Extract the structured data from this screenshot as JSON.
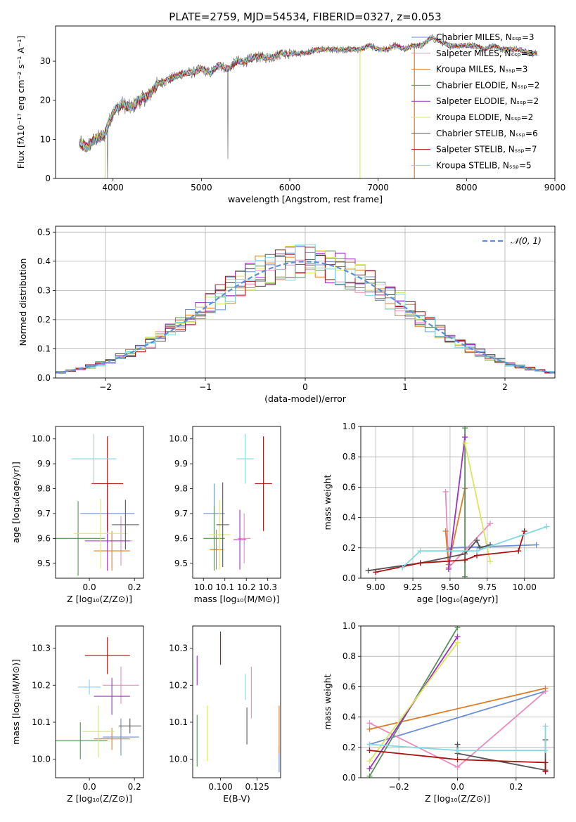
{
  "figure_title": "PLATE=2759, MJD=54534, FIBERID=0327, z=0.053",
  "colors": {
    "Chabrier MILES": "#6b8fd4",
    "Salpeter MILES": "#e98bbb",
    "Kroupa MILES": "#e07b25",
    "Chabrier ELODIE": "#5a8f5a",
    "Salpeter ELODIE": "#9b30c2",
    "Kroupa ELODIE": "#d9e85a",
    "Chabrier STELIB": "#555555",
    "Salpeter STELIB": "#aa1111",
    "Kroupa STELIB": "#80d8e0",
    "spectrum": "#777777",
    "gaussian": "#5b8fd6"
  },
  "chart_data": [
    {
      "id": "spectrum",
      "type": "line",
      "title": "",
      "xlabel": "wavelength [Angstrom, rest frame]",
      "ylabel": "Flux [fλ10⁻¹⁷ erg cm⁻² s⁻¹ A⁻¹]",
      "xlim": [
        3350,
        9000
      ],
      "ylim": [
        0,
        39
      ],
      "xticks": [
        4000,
        5000,
        6000,
        7000,
        8000,
        9000
      ],
      "yticks": [
        0,
        10,
        20,
        30
      ],
      "grid": false,
      "legend_position": "top-right",
      "legend": [
        "Chabrier MILES, Nₛₛₚ=3",
        "Salpeter MILES, Nₛₛₚ=3",
        "Kroupa MILES, Nₛₛₚ=3",
        "Chabrier ELODIE, Nₛₛₚ=2",
        "Salpeter ELODIE, Nₛₛₚ=2",
        "Kroupa ELODIE, Nₛₛₚ=2",
        "Chabrier STELIB, Nₛₛₚ=6",
        "Salpeter STELIB, Nₛₛₚ=7",
        "Kroupa STELIB, Nₛₛₚ=5"
      ],
      "spectrum_x": [
        3620,
        3700,
        3800,
        3900,
        3950,
        4000,
        4100,
        4200,
        4300,
        4400,
        4500,
        4600,
        4700,
        4800,
        4900,
        5000,
        5100,
        5200,
        5300,
        5400,
        5500,
        5600,
        5700,
        5800,
        5900,
        6000,
        6100,
        6200,
        6300,
        6400,
        6500,
        6600,
        6700,
        6800,
        6900,
        7000,
        7100,
        7200,
        7300,
        7400,
        7500,
        7600,
        7700,
        7800,
        7900,
        8000,
        8100,
        8200,
        8300,
        8400,
        8500,
        8600,
        8700,
        8800
      ],
      "spectrum_y": [
        9,
        8,
        10,
        11,
        14,
        17,
        19,
        18,
        20,
        21,
        24,
        25,
        26,
        27,
        27,
        28,
        27,
        29,
        28,
        30,
        30,
        31,
        31,
        31,
        32,
        32,
        32,
        32,
        33,
        33,
        33,
        33,
        33,
        33,
        34,
        33,
        33,
        34,
        33,
        34,
        34,
        36,
        35,
        34,
        34,
        34,
        34,
        33,
        34,
        33,
        33,
        33,
        32,
        32
      ]
    },
    {
      "id": "residual-histogram",
      "type": "bar",
      "title": "",
      "xlabel": "(data-model)/error",
      "ylabel": "Normed distribution",
      "xlim": [
        -2.5,
        2.5
      ],
      "ylim": [
        0,
        0.52
      ],
      "xticks": [
        -2,
        -1,
        0,
        1,
        2
      ],
      "yticks": [
        0.0,
        0.1,
        0.2,
        0.3,
        0.4,
        0.5
      ],
      "grid": true,
      "legend_position": "top-right",
      "legend": [
        "𝒩(0, 1)"
      ],
      "bin_width": 0.1,
      "bins_start": -2.5,
      "bins_count": 50
    },
    {
      "id": "age-vs-Z",
      "type": "scatter",
      "xlabel": "Z [log₁₀(Z/Z⊙)]",
      "ylabel": "age  [log₁₀(age/yr)]",
      "xlim": [
        -0.15,
        0.24
      ],
      "ylim": [
        9.44,
        10.05
      ],
      "xticks": [
        0.0,
        0.2
      ],
      "yticks": [
        9.5,
        9.6,
        9.7,
        9.8,
        9.9,
        10.0
      ],
      "grid": false,
      "points": [
        {
          "m": "Chabrier MILES",
          "x": 0.08,
          "y": 9.7,
          "ex": 0.12,
          "ey": 0.12
        },
        {
          "m": "Salpeter MILES",
          "x": 0.14,
          "y": 9.59,
          "ex": 0.05,
          "ey": 0.1
        },
        {
          "m": "Kroupa MILES",
          "x": 0.1,
          "y": 9.55,
          "ex": 0.08,
          "ey": 0.08
        },
        {
          "m": "Chabrier ELODIE",
          "x": -0.05,
          "y": 9.6,
          "ex": 0.12,
          "ey": 0.15
        },
        {
          "m": "Salpeter ELODIE",
          "x": 0.08,
          "y": 9.59,
          "ex": 0.1,
          "ey": 0.12
        },
        {
          "m": "Kroupa ELODIE",
          "x": 0.05,
          "y": 9.62,
          "ex": 0.12,
          "ey": 0.14
        },
        {
          "m": "Chabrier STELIB",
          "x": 0.16,
          "y": 9.655,
          "ex": 0.06,
          "ey": 0.1
        },
        {
          "m": "Salpeter STELIB",
          "x": 0.08,
          "y": 9.82,
          "ex": 0.07,
          "ey": 0.19
        },
        {
          "m": "Kroupa STELIB",
          "x": 0.02,
          "y": 9.92,
          "ex": 0.1,
          "ey": 0.1
        }
      ]
    },
    {
      "id": "age-vs-mass",
      "type": "scatter",
      "xlabel": "mass [log₁₀(M/M⊙)]",
      "ylabel": "",
      "xlim": [
        9.95,
        10.36
      ],
      "ylim": [
        9.44,
        10.05
      ],
      "xticks": [
        10.0,
        10.1,
        10.2,
        10.3
      ],
      "yticks": [
        9.5,
        9.6,
        9.7,
        9.8,
        9.9,
        10.0
      ],
      "grid": false,
      "points": [
        {
          "m": "Chabrier MILES",
          "x": 10.05,
          "y": 9.7,
          "ex": 0.05,
          "ey": 0.12
        },
        {
          "m": "Salpeter MILES",
          "x": 10.19,
          "y": 9.6,
          "ex": 0.03,
          "ey": 0.1
        },
        {
          "m": "Kroupa MILES",
          "x": 10.06,
          "y": 9.555,
          "ex": 0.03,
          "ey": 0.08
        },
        {
          "m": "Chabrier ELODIE",
          "x": 10.05,
          "y": 9.6,
          "ex": 0.05,
          "ey": 0.13
        },
        {
          "m": "Salpeter ELODIE",
          "x": 10.17,
          "y": 9.595,
          "ex": 0.03,
          "ey": 0.12
        },
        {
          "m": "Kroupa ELODIE",
          "x": 10.075,
          "y": 9.615,
          "ex": 0.05,
          "ey": 0.14
        },
        {
          "m": "Chabrier STELIB",
          "x": 10.09,
          "y": 9.655,
          "ex": 0.03,
          "ey": 0.17
        },
        {
          "m": "Salpeter STELIB",
          "x": 10.28,
          "y": 9.82,
          "ex": 0.04,
          "ey": 0.19
        },
        {
          "m": "Kroupa STELIB",
          "x": 10.195,
          "y": 9.92,
          "ex": 0.04,
          "ey": 0.1
        }
      ]
    },
    {
      "id": "mass-weight-vs-age",
      "type": "line",
      "xlabel": "age  [log₁₀(age/yr)]",
      "ylabel": "mass weight",
      "xlim": [
        8.9,
        10.2
      ],
      "ylim": [
        0,
        1.0
      ],
      "xticks": [
        9.0,
        9.25,
        9.5,
        9.75,
        10.0
      ],
      "yticks": [
        0.0,
        0.2,
        0.4,
        0.6,
        0.8,
        1.0
      ],
      "grid": true,
      "series": [
        {
          "m": "Chabrier MILES",
          "points": [
            [
              9.49,
              0.19
            ],
            [
              9.51,
              0.2
            ],
            [
              10.08,
              0.22
            ]
          ]
        },
        {
          "m": "Salpeter MILES",
          "points": [
            [
              9.47,
              0.57
            ],
            [
              9.49,
              0.07
            ],
            [
              9.77,
              0.36
            ]
          ]
        },
        {
          "m": "Kroupa MILES",
          "points": [
            [
              9.47,
              0.31
            ],
            [
              9.49,
              0.09
            ],
            [
              9.6,
              0.59
            ]
          ]
        },
        {
          "m": "Chabrier ELODIE",
          "points": [
            [
              9.6,
              0.99
            ],
            [
              9.6,
              0.01
            ]
          ]
        },
        {
          "m": "Salpeter ELODIE",
          "points": [
            [
              9.49,
              0.06
            ],
            [
              9.6,
              0.93
            ]
          ]
        },
        {
          "m": "Kroupa ELODIE",
          "points": [
            [
              9.6,
              0.89
            ],
            [
              9.77,
              0.11
            ]
          ]
        },
        {
          "m": "Chabrier STELIB",
          "points": [
            [
              8.95,
              0.05
            ],
            [
              9.3,
              0.1
            ],
            [
              9.6,
              0.16
            ],
            [
              9.68,
              0.25
            ],
            [
              9.7,
              0.2
            ],
            [
              9.77,
              0.22
            ]
          ]
        },
        {
          "m": "Salpeter STELIB",
          "points": [
            [
              9.0,
              0.04
            ],
            [
              9.3,
              0.1
            ],
            [
              9.6,
              0.12
            ],
            [
              9.68,
              0.15
            ],
            [
              9.96,
              0.18
            ],
            [
              10.0,
              0.31
            ]
          ]
        },
        {
          "m": "Kroupa STELIB",
          "points": [
            [
              9.18,
              0.07
            ],
            [
              9.3,
              0.18
            ],
            [
              9.68,
              0.18
            ],
            [
              10.15,
              0.34
            ]
          ]
        }
      ]
    },
    {
      "id": "mass-vs-Z",
      "type": "scatter",
      "xlabel": "Z [log₁₀(Z/Z⊙)]",
      "ylabel": "mass [log₁₀(M/M⊙)]",
      "xlim": [
        -0.15,
        0.24
      ],
      "ylim": [
        9.95,
        10.36
      ],
      "xticks": [
        0.0,
        0.2
      ],
      "yticks": [
        10.0,
        10.1,
        10.2,
        10.3
      ],
      "grid": false,
      "points": [
        {
          "m": "Chabrier MILES",
          "x": 0.14,
          "y": 10.06,
          "ex": 0.08,
          "ey": 0.05
        },
        {
          "m": "Salpeter MILES",
          "x": 0.14,
          "y": 10.2,
          "ex": 0.08,
          "ey": 0.05
        },
        {
          "m": "Kroupa MILES",
          "x": 0.1,
          "y": 10.055,
          "ex": 0.08,
          "ey": 0.03
        },
        {
          "m": "Chabrier ELODIE",
          "x": -0.04,
          "y": 10.05,
          "ex": 0.12,
          "ey": 0.05
        },
        {
          "m": "Salpeter ELODIE",
          "x": 0.1,
          "y": 10.17,
          "ex": 0.08,
          "ey": 0.05
        },
        {
          "m": "Kroupa ELODIE",
          "x": 0.04,
          "y": 10.075,
          "ex": 0.07,
          "ey": 0.07
        },
        {
          "m": "Chabrier STELIB",
          "x": 0.18,
          "y": 10.09,
          "ex": 0.05,
          "ey": 0.02
        },
        {
          "m": "Salpeter STELIB",
          "x": 0.08,
          "y": 10.28,
          "ex": 0.1,
          "ey": 0.05
        },
        {
          "m": "Kroupa STELIB",
          "x": 0.0,
          "y": 10.195,
          "ex": 0.05,
          "ey": 0.02
        }
      ]
    },
    {
      "id": "mass-vs-ebv",
      "type": "scatter",
      "xlabel": "E(B-V)",
      "ylabel": "",
      "xlim": [
        0.081,
        0.141
      ],
      "ylim": [
        9.95,
        10.36
      ],
      "xticks": [
        0.1,
        0.125
      ],
      "yticks": [
        10.0,
        10.1,
        10.2,
        10.3
      ],
      "grid": false,
      "points": [
        {
          "m": "Chabrier MILES",
          "x": 0.14,
          "y": 10.0,
          "ex": 0,
          "ey": 0.035
        },
        {
          "m": "Salpeter MILES",
          "x": 0.121,
          "y": 10.18,
          "ex": 0,
          "ey": 0.07
        },
        {
          "m": "Kroupa MILES",
          "x": 0.14,
          "y": 10.08,
          "ex": 0,
          "ey": 0.065
        },
        {
          "m": "Chabrier ELODIE",
          "x": 0.084,
          "y": 10.05,
          "ex": 0,
          "ey": 0.07
        },
        {
          "m": "Salpeter ELODIE",
          "x": 0.084,
          "y": 10.24,
          "ex": 0,
          "ey": 0.04
        },
        {
          "m": "Kroupa ELODIE",
          "x": 0.091,
          "y": 10.07,
          "ex": 0,
          "ey": 0.075
        },
        {
          "m": "Chabrier STELIB",
          "x": 0.118,
          "y": 10.09,
          "ex": 0,
          "ey": 0.05
        },
        {
          "m": "Salpeter STELIB",
          "x": 0.1,
          "y": 10.3,
          "ex": 0,
          "ey": 0.045
        },
        {
          "m": "Kroupa STELIB",
          "x": 0.117,
          "y": 10.195,
          "ex": 0,
          "ey": 0.035
        }
      ]
    },
    {
      "id": "mass-weight-vs-Z",
      "type": "line",
      "xlabel": "Z [log₁₀(Z/Z⊙)]",
      "ylabel": "mass weight",
      "xlim": [
        -0.33,
        0.33
      ],
      "ylim": [
        0,
        1.0
      ],
      "xticks": [
        -0.2,
        0.0,
        0.2
      ],
      "yticks": [
        0.0,
        0.2,
        0.4,
        0.6,
        0.8,
        1.0
      ],
      "grid": true,
      "series": [
        {
          "m": "Chabrier MILES",
          "points": [
            [
              -0.3,
              0.22
            ],
            [
              0.3,
              0.57
            ]
          ]
        },
        {
          "m": "Salpeter MILES",
          "points": [
            [
              -0.3,
              0.36
            ],
            [
              0.0,
              0.07
            ],
            [
              0.3,
              0.57
            ]
          ]
        },
        {
          "m": "Kroupa MILES",
          "points": [
            [
              -0.3,
              0.32
            ],
            [
              0.3,
              0.59
            ]
          ]
        },
        {
          "m": "Chabrier ELODIE",
          "points": [
            [
              -0.3,
              0.01
            ],
            [
              0.0,
              0.99
            ]
          ]
        },
        {
          "m": "Salpeter ELODIE",
          "points": [
            [
              -0.3,
              0.06
            ],
            [
              0.0,
              0.93
            ]
          ]
        },
        {
          "m": "Kroupa ELODIE",
          "points": [
            [
              -0.3,
              0.11
            ],
            [
              0.0,
              0.89
            ]
          ]
        },
        {
          "m": "Chabrier STELIB",
          "points": [
            [
              0.0,
              0.22
            ],
            [
              0.0,
              0.16
            ],
            [
              0.3,
              0.05
            ],
            [
              0.3,
              0.25
            ]
          ]
        },
        {
          "m": "Salpeter STELIB",
          "points": [
            [
              -0.3,
              0.18
            ],
            [
              0.0,
              0.12
            ],
            [
              0.3,
              0.1
            ],
            [
              0.3,
              0.04
            ]
          ]
        },
        {
          "m": "Kroupa STELIB",
          "points": [
            [
              -0.3,
              0.22
            ],
            [
              0.0,
              0.18
            ],
            [
              0.3,
              0.18
            ],
            [
              0.3,
              0.34
            ]
          ]
        }
      ]
    }
  ]
}
